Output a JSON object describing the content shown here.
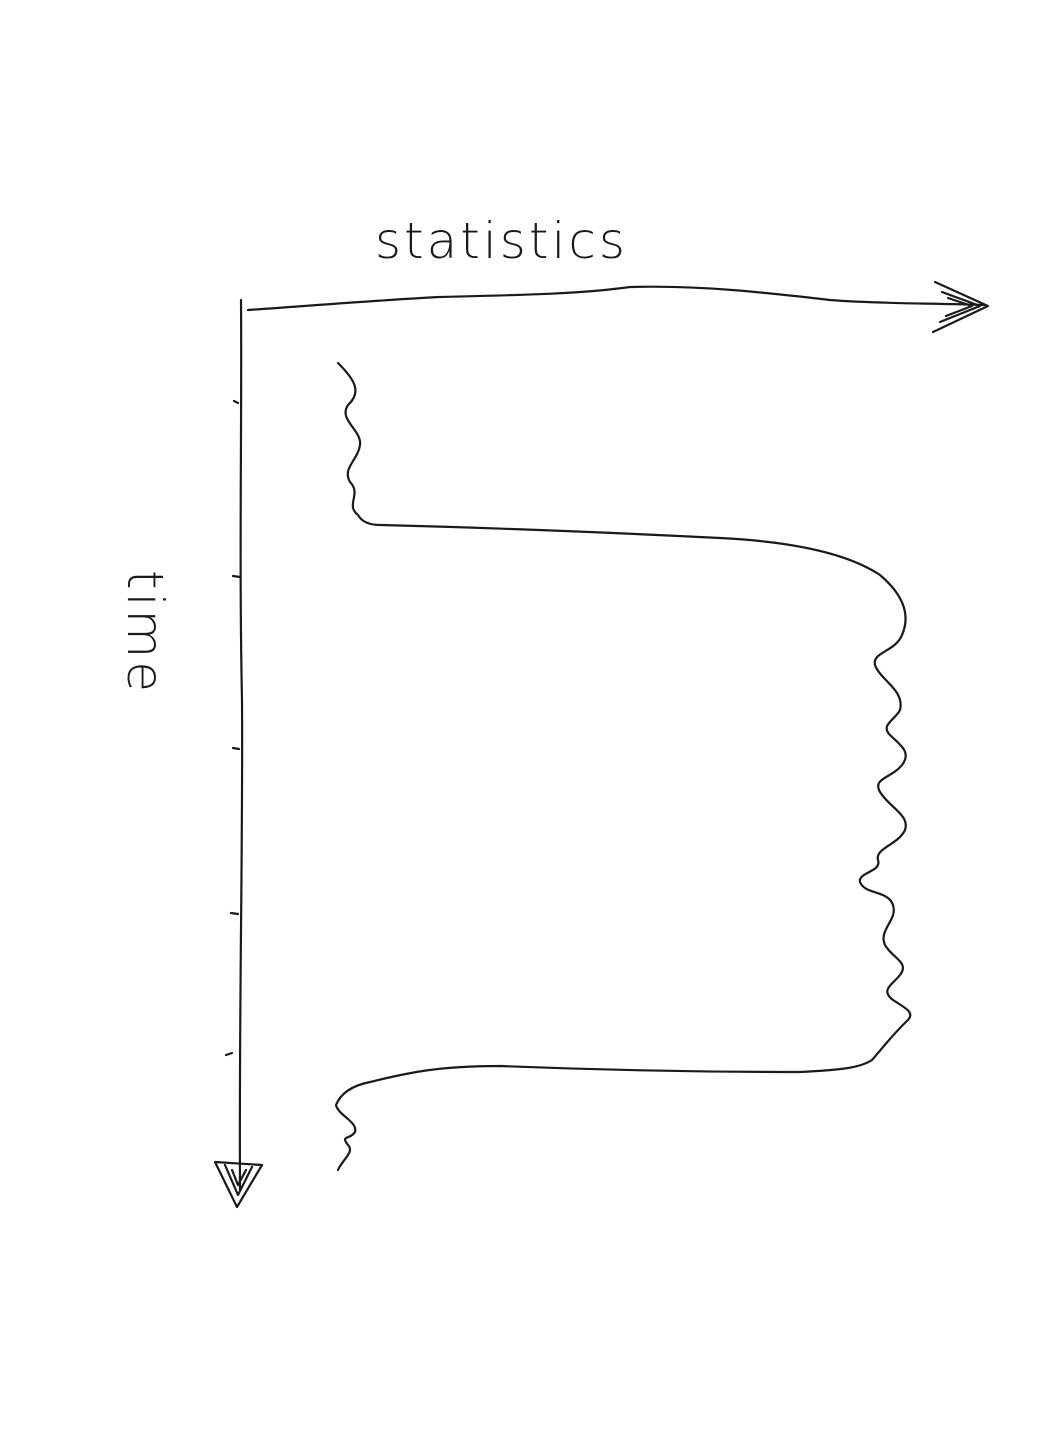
{
  "labels": {
    "x_axis": "statistics",
    "y_axis": "time"
  }
}
